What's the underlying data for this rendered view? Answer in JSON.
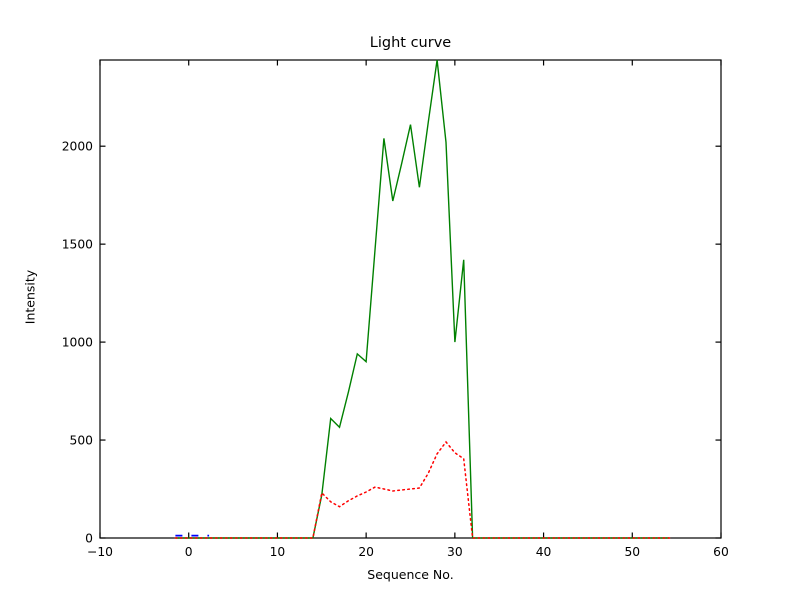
{
  "figure": {
    "background": "#ffffff",
    "border_color": "#000000"
  },
  "chart_data": {
    "type": "line",
    "title": "Light curve",
    "xlabel": "Sequence No.",
    "ylabel": "Intensity",
    "xlim": [
      -10,
      60
    ],
    "ylim": [
      0,
      2440
    ],
    "xtick_values": [
      -10,
      0,
      10,
      20,
      30,
      40,
      50,
      60
    ],
    "xtick_labels": [
      "−10",
      "0",
      "10",
      "20",
      "30",
      "40",
      "50",
      "60"
    ],
    "ytick_values": [
      0,
      500,
      1000,
      1500,
      2000
    ],
    "ytick_labels": [
      "0",
      "500",
      "1000",
      "1500",
      "2000"
    ],
    "grid": false,
    "legend": "none",
    "tick_direction": "in",
    "series": [
      {
        "name": "main-light-curve",
        "color": "#008000",
        "style": "solid",
        "width": 1.4,
        "x": [
          -1.5,
          13,
          14,
          15,
          16,
          17,
          18,
          19,
          20,
          21,
          22,
          23,
          24,
          25,
          26,
          27,
          28,
          29,
          30,
          31,
          32,
          33,
          54.2
        ],
        "y": [
          0,
          0,
          0,
          220,
          610,
          565,
          745,
          940,
          900,
          1470,
          2040,
          1720,
          1910,
          2110,
          1790,
          2120,
          2440,
          2020,
          1000,
          1420,
          0,
          0,
          0
        ]
      },
      {
        "name": "secondary-light-curve",
        "color": "#ff0000",
        "style": "dotted",
        "width": 1.5,
        "x": [
          -1.5,
          13,
          14,
          15,
          16,
          17,
          18,
          19,
          20,
          21,
          22,
          23,
          24,
          25,
          26,
          27,
          28,
          29,
          30,
          31,
          32,
          33,
          54.2
        ],
        "y": [
          0,
          0,
          0,
          230,
          185,
          160,
          190,
          215,
          235,
          260,
          250,
          240,
          245,
          250,
          255,
          330,
          430,
          490,
          435,
          405,
          0,
          0,
          0
        ]
      },
      {
        "name": "baseline-marker",
        "color": "#0000ff",
        "style": "dashed",
        "width": 1.8,
        "x": [
          -1.5,
          2.3
        ],
        "y": [
          12,
          12
        ]
      }
    ]
  }
}
